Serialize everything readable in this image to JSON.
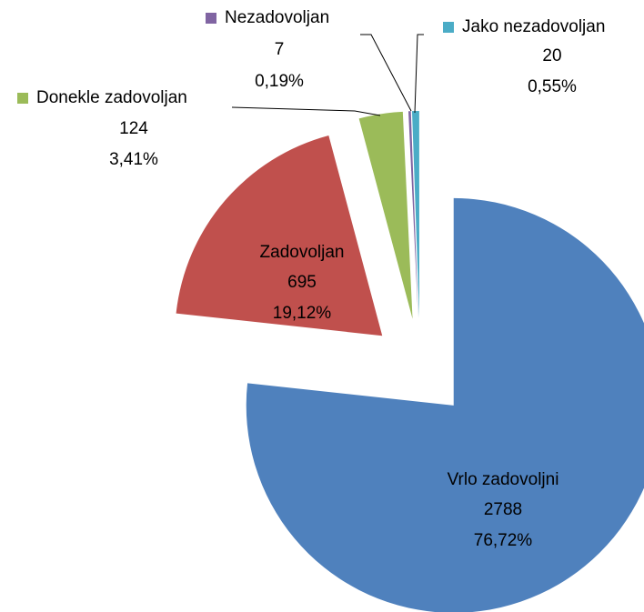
{
  "chart_data": {
    "type": "pie",
    "categories": [
      "Vrlo zadovoljni",
      "Zadovoljan",
      "Donekle zadovoljan",
      "Nezadovoljan",
      "Jako nezadovoljan"
    ],
    "values": [
      2788,
      695,
      124,
      7,
      20
    ],
    "percentages": [
      76.72,
      19.12,
      3.41,
      0.19,
      0.55
    ],
    "percentage_labels": [
      "76,72%",
      "19,12%",
      "3,41%",
      "0,19%",
      "0,55%"
    ],
    "colors": [
      "#4f81bd",
      "#c0504d",
      "#9bbb59",
      "#8064a2",
      "#4bacc6"
    ]
  }
}
